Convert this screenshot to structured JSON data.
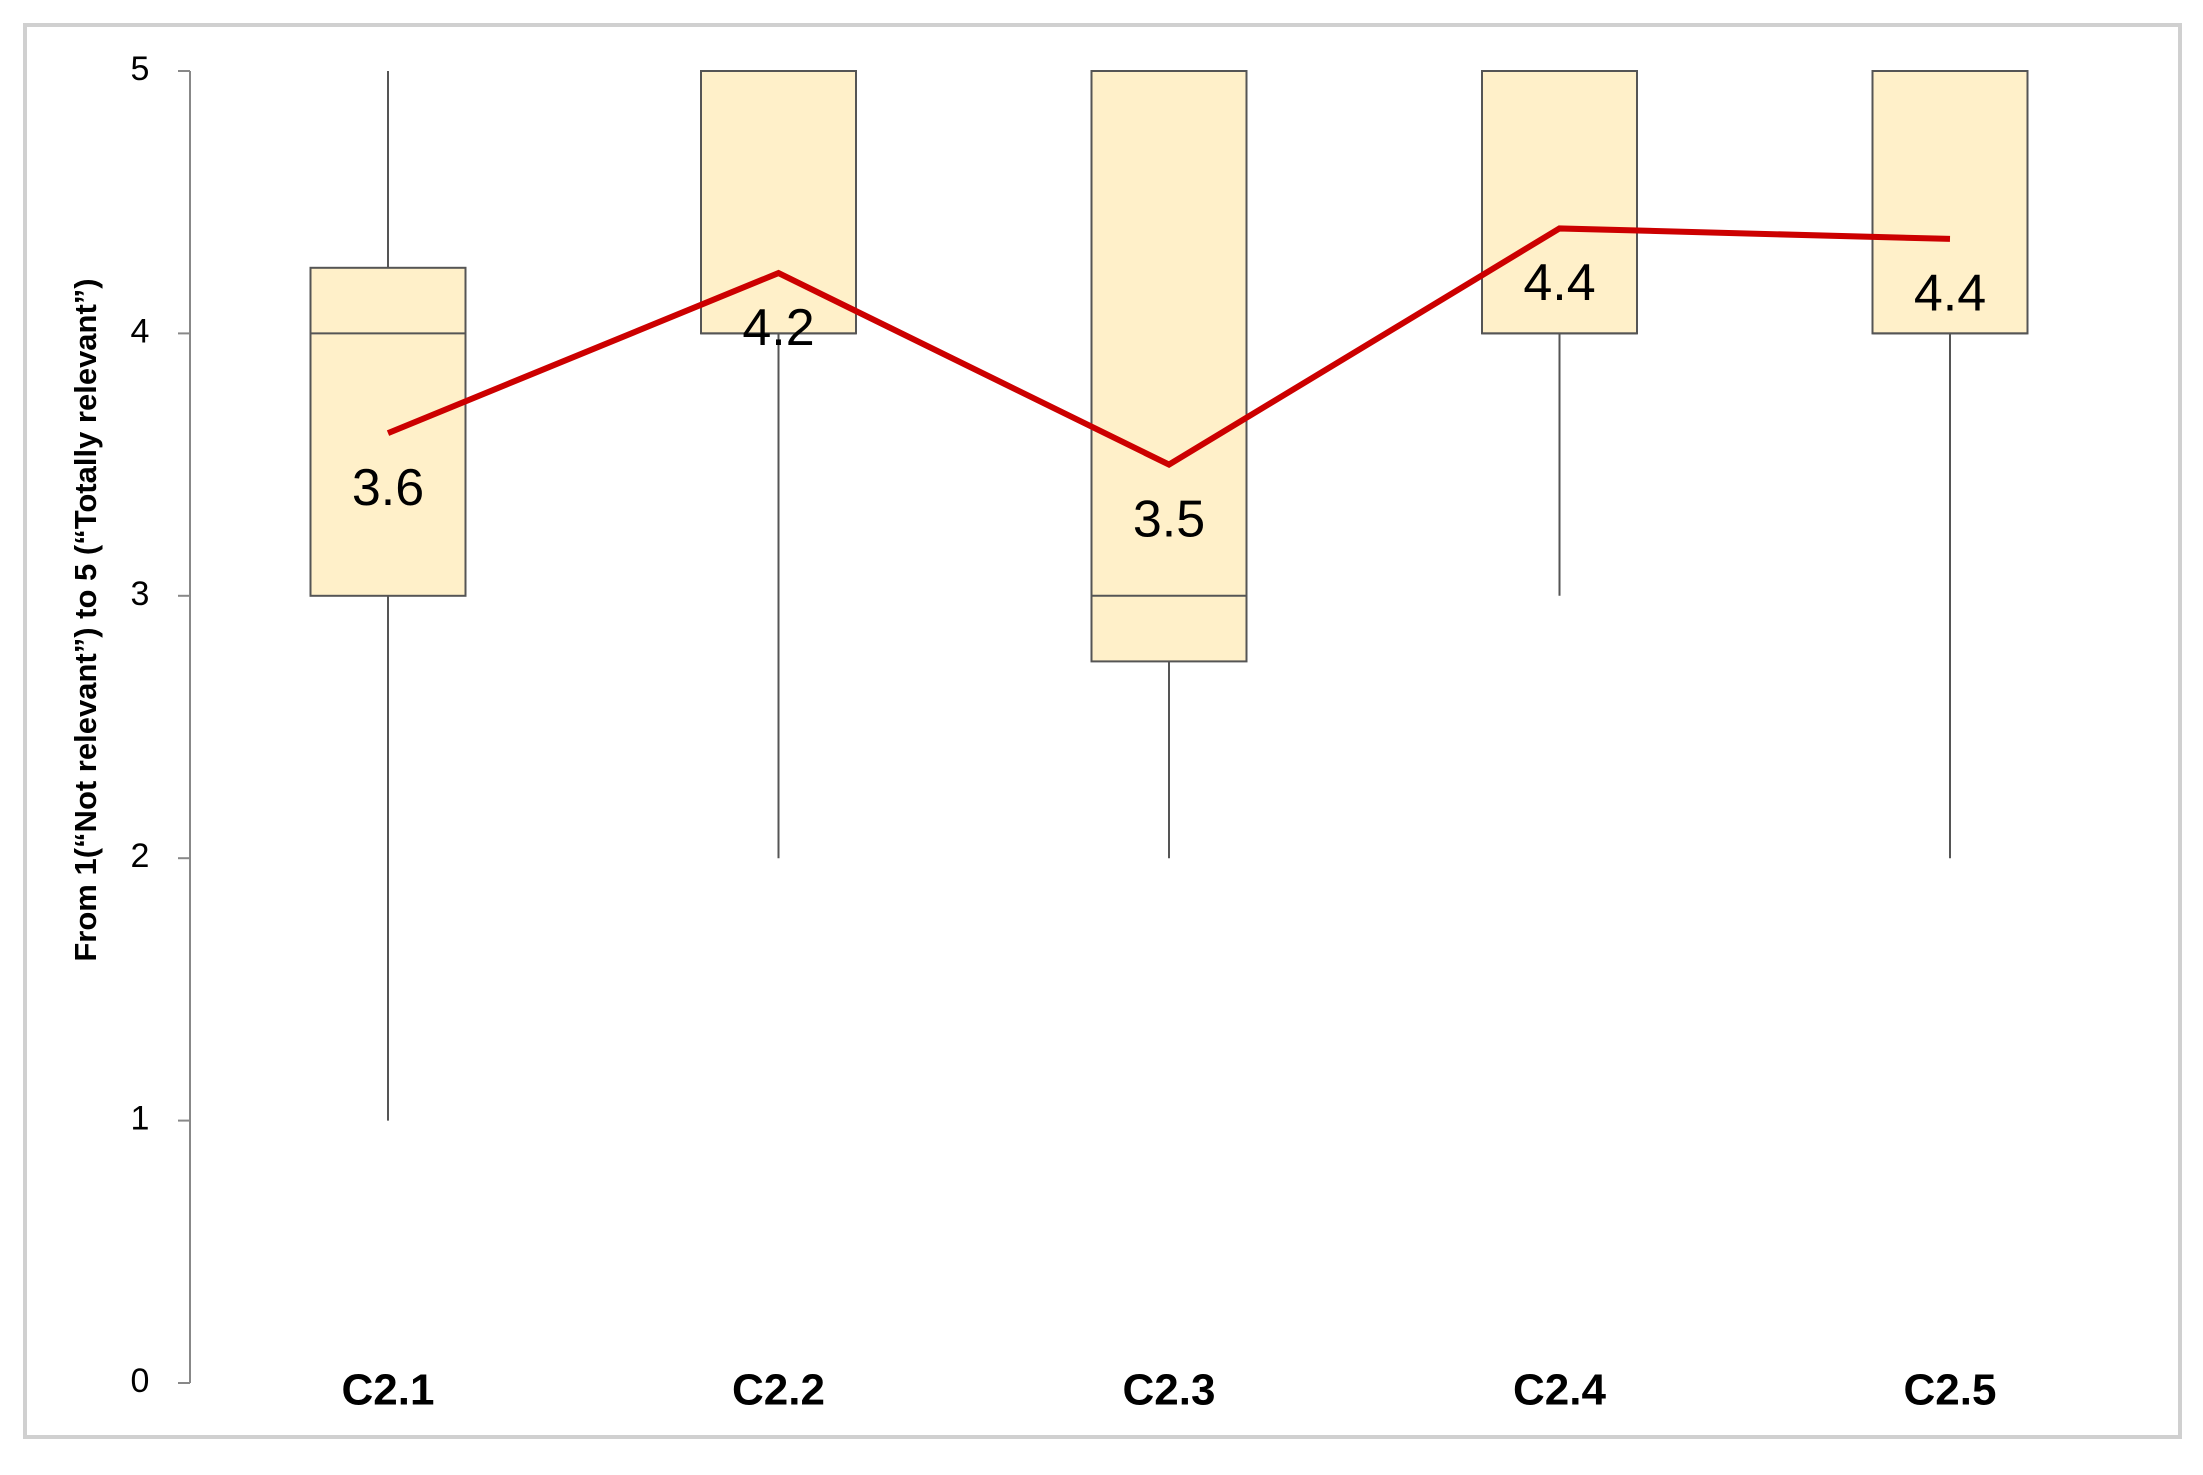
{
  "chart_data": {
    "type": "box",
    "y_label": "From 1(“Not relevant”) to 5 (“Totally relevant”)",
    "categories": [
      "C2.1",
      "C2.2",
      "C2.3",
      "C2.4",
      "C2.5"
    ],
    "min": [
      1,
      2,
      2,
      3,
      2
    ],
    "q1": [
      3,
      4,
      2.75,
      4,
      4
    ],
    "median": [
      4,
      4,
      3,
      4,
      4
    ],
    "q3": [
      4.25,
      5,
      5,
      5,
      5
    ],
    "max": [
      5,
      5,
      5,
      5,
      5
    ],
    "box_color": "#fff0c9",
    "mean": {
      "values": [
        3.62,
        4.23,
        3.5,
        4.4,
        4.36
      ],
      "value_labels": [
        "3.6",
        "4.2",
        "3.5",
        "4.4",
        "4.4"
      ],
      "color": "#cc0000"
    },
    "ylim": [
      0,
      5
    ],
    "yticks": [
      0,
      1,
      2,
      3,
      4,
      5
    ]
  }
}
